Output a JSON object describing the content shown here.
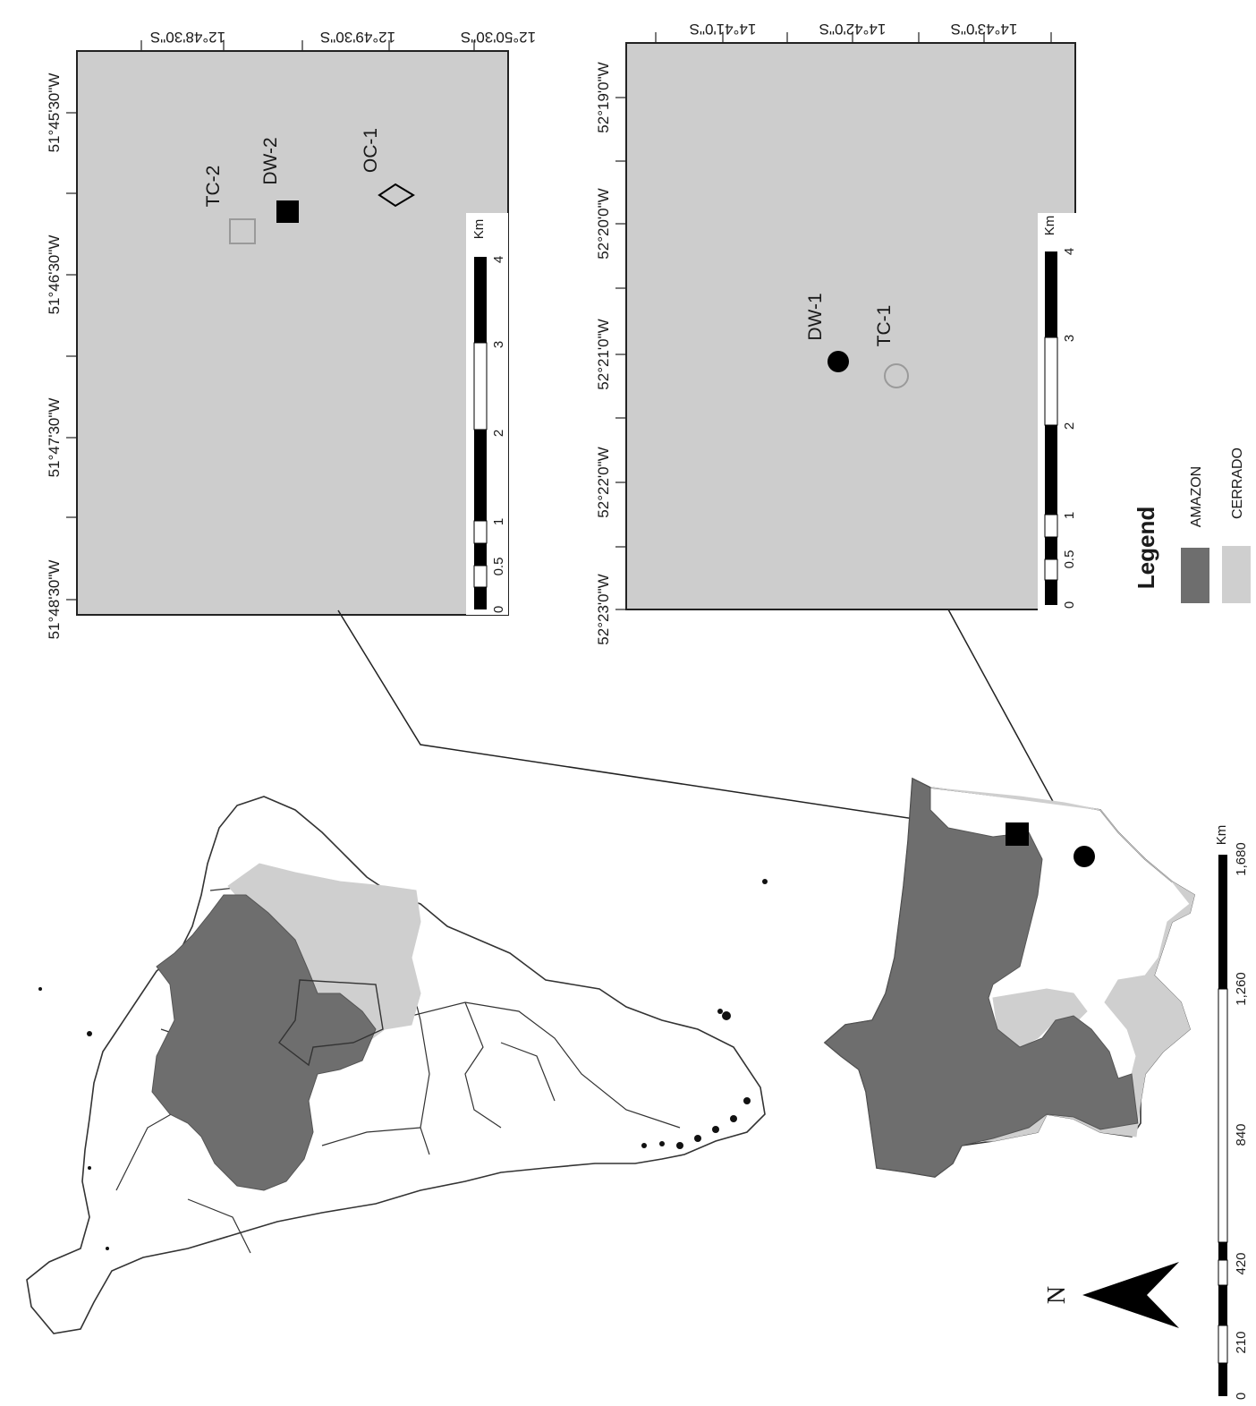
{
  "figure": {
    "site_map_1": {
      "lon_ticks": [
        "51°48'30\"W",
        "51°47'30\"W",
        "51°46'30\"W",
        "51°45'30\"W"
      ],
      "lat_ticks": [
        "12°48'30\"S",
        "12°49'30\"S",
        "12°50'30\"S"
      ],
      "sites": [
        {
          "id": "TC-2",
          "symbol": "hollow-square",
          "color": "#9a9a9a"
        },
        {
          "id": "DW-2",
          "symbol": "filled-square",
          "color": "#000000"
        },
        {
          "id": "OC-1",
          "symbol": "hollow-diamond",
          "color": "#000000"
        }
      ],
      "scale_bar": {
        "labels": [
          "0",
          "0.5",
          "1",
          "2",
          "3",
          "4"
        ],
        "unit": "Km"
      }
    },
    "site_map_2": {
      "lon_ticks": [
        "52°23'0\"W",
        "52°22'0\"W",
        "52°21'0\"W",
        "52°20'0\"W",
        "52°19'0\"W"
      ],
      "lat_ticks": [
        "14°41'0\"S",
        "14°42'0\"S",
        "14°43'0\"S"
      ],
      "sites": [
        {
          "id": "DW-1",
          "symbol": "filled-circle",
          "color": "#000000"
        },
        {
          "id": "TC-1",
          "symbol": "hollow-circle",
          "color": "#9a9a9a"
        }
      ],
      "scale_bar": {
        "labels": [
          "0",
          "0.5",
          "1",
          "2",
          "3",
          "4"
        ],
        "unit": "Km"
      }
    },
    "legend": {
      "title": "Legend",
      "items": [
        {
          "label": "AMAZON",
          "color": "#6e6e6e"
        },
        {
          "label": "CERRADO",
          "color": "#cfcfcf"
        }
      ]
    },
    "state_map": {
      "markers": [
        {
          "ref": "site_map_1",
          "symbol": "filled-square"
        },
        {
          "ref": "site_map_2",
          "symbol": "filled-circle"
        }
      ]
    },
    "overview_scale_bar": {
      "labels": [
        "0",
        "210",
        "420",
        "840",
        "1,260",
        "1,680"
      ],
      "unit": "Km"
    },
    "north_arrow": {
      "label": "N"
    },
    "colors": {
      "amazon": "#6e6e6e",
      "cerrado": "#cfcfcf",
      "map_background": "#cdcdcd",
      "outline": "#333333"
    }
  }
}
